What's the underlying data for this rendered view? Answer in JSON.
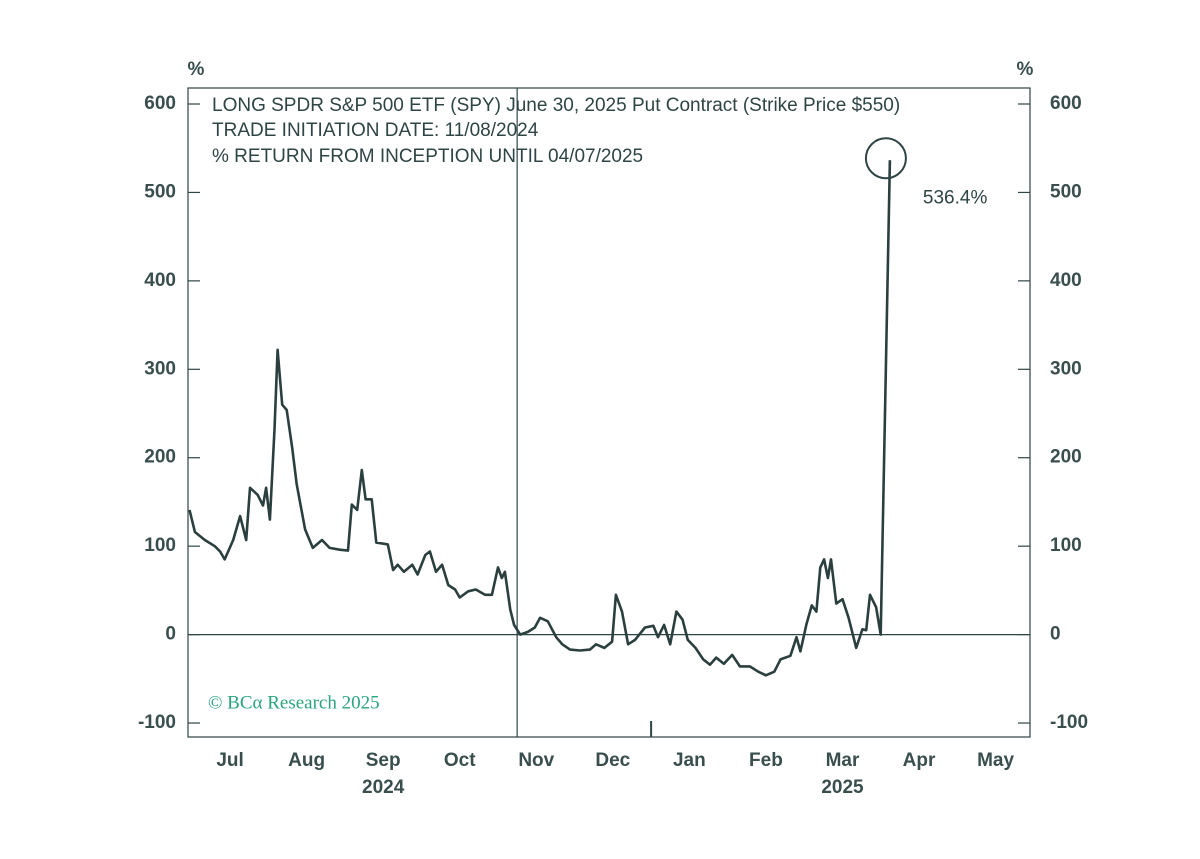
{
  "chart_data": {
    "type": "line",
    "title_lines": [
      "LONG SPDR S&P 500 ETF (SPY) June 30, 2025 Put Contract (Strike Price $550)",
      "TRADE INITIATION DATE: 11/08/2024",
      "% RETURN FROM INCEPTION UNTIL 04/07/2025"
    ],
    "y_unit": "%",
    "watermark": "© BCα Research 2025",
    "color": "#2b3f3f",
    "xlim": [
      -0.05,
      10.95
    ],
    "ylim": [
      -115.8,
      618.1
    ],
    "yticks": [
      -100,
      0,
      100,
      200,
      300,
      400,
      500,
      600
    ],
    "xticks": [
      {
        "value": 0.5,
        "label": "Jul"
      },
      {
        "value": 1.5,
        "label": "Aug"
      },
      {
        "value": 2.5,
        "label": "Sep"
      },
      {
        "value": 3.5,
        "label": "Oct"
      },
      {
        "value": 4.5,
        "label": "Nov"
      },
      {
        "value": 5.5,
        "label": "Dec"
      },
      {
        "value": 6.5,
        "label": "Jan"
      },
      {
        "value": 7.5,
        "label": "Feb"
      },
      {
        "value": 8.5,
        "label": "Mar"
      },
      {
        "value": 9.5,
        "label": "Apr"
      },
      {
        "value": 10.5,
        "label": "May"
      }
    ],
    "year_labels": [
      {
        "value": 2.5,
        "label": "2024"
      },
      {
        "value": 8.5,
        "label": "2025"
      }
    ],
    "year_divider": 6.0,
    "trade_initiation": 4.25,
    "annotation_label": "536.4%",
    "x": [
      -0.03,
      0.04,
      0.17,
      0.3,
      0.37,
      0.43,
      0.54,
      0.63,
      0.71,
      0.76,
      0.86,
      0.93,
      0.97,
      1.02,
      1.08,
      1.12,
      1.18,
      1.24,
      1.31,
      1.37,
      1.48,
      1.58,
      1.7,
      1.8,
      1.93,
      2.04,
      2.09,
      2.16,
      2.22,
      2.27,
      2.35,
      2.41,
      2.56,
      2.63,
      2.69,
      2.77,
      2.88,
      2.95,
      3.05,
      3.11,
      3.19,
      3.27,
      3.35,
      3.44,
      3.5,
      3.61,
      3.71,
      3.83,
      3.92,
      4.0,
      4.05,
      4.09,
      4.16,
      4.21,
      4.29,
      4.39,
      4.48,
      4.55,
      4.65,
      4.76,
      4.84,
      4.94,
      5.07,
      5.2,
      5.28,
      5.39,
      5.49,
      5.54,
      5.62,
      5.7,
      5.79,
      5.92,
      6.03,
      6.09,
      6.17,
      6.25,
      6.33,
      6.41,
      6.48,
      6.58,
      6.68,
      6.77,
      6.85,
      6.95,
      7.06,
      7.16,
      7.29,
      7.4,
      7.5,
      7.61,
      7.69,
      7.82,
      7.9,
      7.95,
      8.03,
      8.1,
      8.16,
      8.21,
      8.26,
      8.31,
      8.35,
      8.42,
      8.5,
      8.58,
      8.68,
      8.76,
      8.81,
      8.86,
      8.94,
      9.0,
      9.12
    ],
    "values": [
      141,
      116,
      107,
      100,
      94,
      85,
      107,
      134,
      107,
      166,
      158,
      146,
      166,
      130,
      232,
      322,
      260,
      254,
      212,
      170,
      119,
      98,
      107,
      98,
      96,
      95,
      147,
      141,
      186,
      153,
      153,
      104,
      102,
      73,
      79,
      71,
      79,
      68,
      90,
      94,
      71,
      79,
      56,
      51,
      42,
      49,
      51,
      45,
      45,
      76,
      64,
      71,
      28,
      11,
      0,
      3,
      8,
      19,
      15,
      -3,
      -11,
      -17,
      -18,
      -17,
      -11,
      -15,
      -8,
      45,
      26,
      -11,
      -6,
      8,
      10,
      -3,
      11,
      -11,
      26,
      17,
      -6,
      -15,
      -28,
      -34,
      -26,
      -33,
      -23,
      -36,
      -36,
      -42,
      -46,
      -42,
      -28,
      -24,
      -3,
      -19,
      12,
      33,
      26,
      76,
      85,
      64,
      85,
      35,
      40,
      19,
      -15,
      6,
      5,
      45,
      31,
      0,
      536.4
    ]
  }
}
